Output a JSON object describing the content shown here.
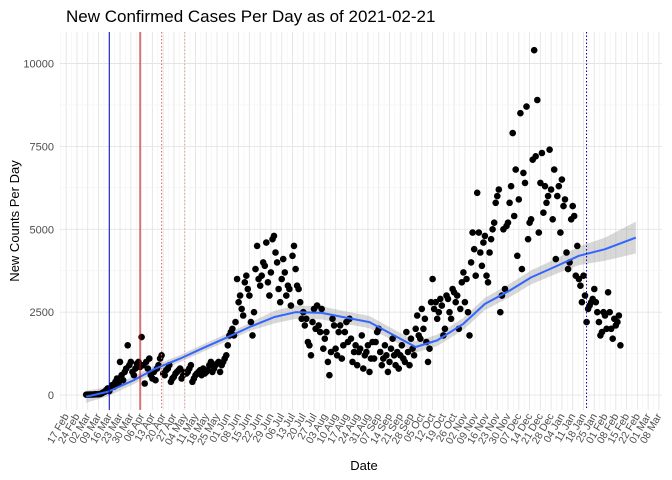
{
  "chart_data": {
    "type": "scatter",
    "title": "New Confirmed Cases Per Day as of 2021-02-21",
    "xlabel": "Date",
    "ylabel": "New Counts Per Day",
    "x_range": [
      "2020-02-13",
      "2021-03-10"
    ],
    "ylim": [
      -450,
      10950
    ],
    "y_ticks": [
      0,
      2500,
      5000,
      7500,
      10000
    ],
    "x_tick_labels": [
      "17 Feb",
      "24 Feb",
      "02 Mar",
      "09 Mar",
      "16 Mar",
      "23 Mar",
      "30 Mar",
      "06 Apr",
      "13 Apr",
      "20 Apr",
      "27 Apr",
      "04 May",
      "11 May",
      "18 May",
      "25 May",
      "01 Jun",
      "08 Jun",
      "15 Jun",
      "22 Jun",
      "29 Jun",
      "06 Jul",
      "13 Jul",
      "20 Jul",
      "27 Jul",
      "03 Aug",
      "10 Aug",
      "17 Aug",
      "24 Aug",
      "31 Aug",
      "07 Sep",
      "14 Sep",
      "21 Sep",
      "28 Sep",
      "05 Oct",
      "12 Oct",
      "19 Oct",
      "26 Oct",
      "02 Nov",
      "09 Nov",
      "16 Nov",
      "23 Nov",
      "30 Nov",
      "07 Dec",
      "14 Dec",
      "21 Dec",
      "28 Dec",
      "04 Jan",
      "11 Jan",
      "18 Jan",
      "25 Jan",
      "01 Feb",
      "08 Feb",
      "15 Feb",
      "22 Feb",
      "01 Mar",
      "08 Mar"
    ],
    "x_tick_start": "2020-02-17",
    "x_tick_step_days": 7,
    "grid": true,
    "point_color": "#000000",
    "smooth_color": "#3366ff",
    "band_color": "#999999",
    "series": [
      {
        "type": "points",
        "x_start": "2020-03-01",
        "values": [
          10,
          12,
          14,
          16,
          18,
          20,
          22,
          25,
          28,
          30,
          50,
          80,
          100,
          150,
          200,
          120,
          220,
          300,
          250,
          400,
          500,
          350,
          1000,
          600,
          450,
          700,
          800,
          1500,
          900,
          1000,
          700,
          600,
          800,
          950,
          1000,
          850,
          1750,
          900,
          350,
          1000,
          800,
          1100,
          600,
          500,
          700,
          450,
          800,
          900,
          1100,
          1200,
          650,
          600,
          750,
          800,
          900,
          400,
          500,
          550,
          650,
          700,
          750,
          800,
          500,
          600,
          700,
          650,
          700,
          800,
          900,
          400,
          500,
          600,
          650,
          700,
          750,
          600,
          800,
          650,
          700,
          750,
          900,
          1000,
          700,
          800,
          900,
          950,
          1000,
          700,
          900,
          1000,
          1100,
          1200,
          1500,
          1800,
          1900,
          2000,
          1800,
          2200,
          3500,
          2800,
          3000,
          2600,
          2400,
          3400,
          3600,
          3200,
          3000,
          2200,
          1800,
          2500,
          3800,
          4500,
          3500,
          3300,
          3600,
          4000,
          3900,
          4600,
          3400,
          3000,
          3700,
          4700,
          4800,
          4300,
          4000,
          3200,
          2800,
          3500,
          4100,
          3700,
          3000,
          3300,
          3200,
          2700,
          4200,
          4500,
          3800,
          3300,
          3200,
          2800,
          2300,
          2500,
          2100,
          2300,
          1600,
          1500,
          1200,
          2200,
          2600,
          2000,
          2700,
          2100,
          1900,
          2600,
          1400,
          1700,
          1900,
          1000,
          600,
          1300,
          2300,
          2100,
          1400,
          1200,
          1900,
          2100,
          1100,
          1500,
          1900,
          2200,
          1600,
          2300,
          1700,
          1000,
          1300,
          1500,
          900,
          1300,
          1400,
          1800,
          800,
          1200,
          1300,
          1500,
          700,
          1100,
          1600,
          1100,
          1600,
          1900,
          2000,
          1300,
          900,
          1100,
          1500,
          1200,
          700,
          1000,
          1400,
          1700,
          1200,
          900,
          1300,
          800,
          1200,
          1500,
          1100,
          1000,
          1900,
          1300,
          900,
          1700,
          1400,
          1200,
          2000,
          2400,
          1800,
          1700,
          2600,
          2000,
          2300,
          1600,
          1000,
          1400,
          2800,
          3500,
          2600,
          2800,
          2300,
          2500,
          2900,
          2700,
          1800,
          2000,
          3000,
          2900,
          2500,
          2300,
          3200,
          3100,
          2800,
          3000,
          2000,
          2600,
          3400,
          3700,
          2800,
          3500,
          2500,
          1800,
          4000,
          4900,
          4400,
          3600,
          6100,
          4900,
          4300,
          3900,
          4600,
          4800,
          3600,
          3400,
          4300,
          4700,
          5000,
          5200,
          5800,
          6000,
          6200,
          2500,
          3000,
          5000,
          3200,
          5100,
          5200,
          5800,
          6300,
          7900,
          5400,
          6800,
          4200,
          5900,
          8500,
          3800,
          6700,
          6400,
          8700,
          4700,
          5200,
          5300,
          7100,
          10400,
          7200,
          8900,
          4900,
          6400,
          7300,
          5500,
          6300,
          5800,
          6000,
          7400,
          6200,
          5300,
          6800,
          4100,
          6000,
          6300,
          4900,
          6500,
          5700,
          5900,
          4300,
          3800,
          4000,
          5300,
          5700,
          5400,
          3600,
          4500,
          3500,
          3300,
          2800,
          3600,
          3000,
          2200,
          2600,
          2700,
          2800,
          2900,
          3200,
          2800,
          2500,
          2200,
          1800,
          1900,
          2500,
          2400,
          2000,
          3100,
          2500,
          2000,
          1700,
          2300,
          2100,
          2200,
          2400,
          1500
        ]
      },
      {
        "type": "smooth",
        "dates": [
          "2020-03-01",
          "2020-03-15",
          "2020-04-01",
          "2020-04-15",
          "2020-05-01",
          "2020-05-15",
          "2020-06-01",
          "2020-06-15",
          "2020-07-01",
          "2020-07-15",
          "2020-08-01",
          "2020-08-15",
          "2020-09-01",
          "2020-09-15",
          "2020-10-01",
          "2020-10-15",
          "2020-11-01",
          "2020-11-15",
          "2020-12-01",
          "2020-12-15",
          "2021-01-01",
          "2021-01-15",
          "2021-02-01",
          "2021-02-21"
        ],
        "values": [
          -50,
          100,
          450,
          800,
          1100,
          1400,
          1750,
          2050,
          2350,
          2500,
          2480,
          2350,
          2200,
          1850,
          1450,
          1650,
          2150,
          2750,
          3150,
          3550,
          3900,
          4200,
          4400,
          4750
        ],
        "band_halfwidth": [
          180,
          140,
          120,
          110,
          105,
          110,
          115,
          120,
          190,
          200,
          195,
          190,
          185,
          175,
          170,
          175,
          180,
          185,
          200,
          210,
          230,
          280,
          350,
          480
        ]
      }
    ],
    "vlines": [
      {
        "date": "2020-03-16",
        "color": "#0000cc",
        "style": "solid"
      },
      {
        "date": "2020-04-05",
        "color": "#cc0000",
        "style": "solid"
      },
      {
        "date": "2020-04-19",
        "color": "#e06666",
        "style": "dotted"
      },
      {
        "date": "2020-05-04",
        "color": "#ee9999",
        "style": "dotted"
      },
      {
        "date": "2021-01-20",
        "color": "#000099",
        "style": "dotted"
      }
    ]
  }
}
